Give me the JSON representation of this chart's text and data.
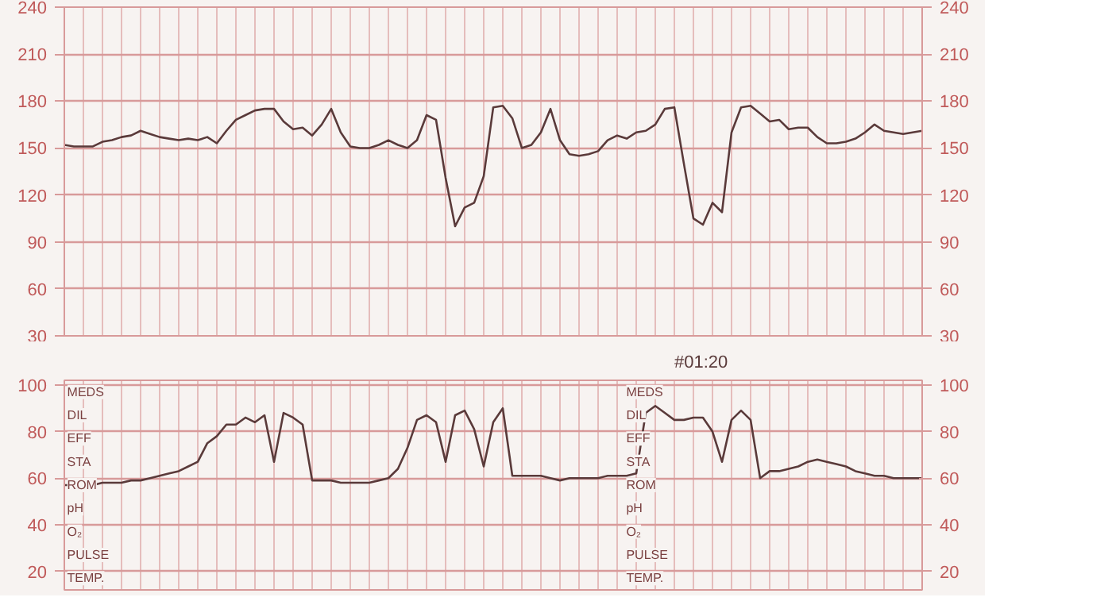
{
  "chart_data": [
    {
      "type": "line",
      "categories": [
        null,
        null,
        null,
        null,
        null,
        null,
        null,
        null,
        null,
        null,
        null,
        null,
        null,
        null,
        null,
        null,
        null,
        null,
        null,
        null,
        null,
        null,
        null,
        null,
        null,
        null,
        null,
        null,
        null,
        null,
        null,
        null,
        null,
        null,
        null,
        null,
        null,
        null,
        null,
        null,
        null,
        null,
        null,
        null,
        null,
        null,
        null,
        null,
        null,
        null,
        null,
        null,
        null,
        null,
        null,
        null,
        null,
        null,
        null,
        null,
        null,
        null,
        null,
        null,
        null,
        null,
        null,
        null,
        null,
        null,
        null,
        null,
        null,
        null,
        null,
        null,
        null,
        null,
        null,
        null,
        null,
        null,
        null,
        null,
        null,
        null,
        null,
        null,
        null,
        null,
        null
      ],
      "series": [
        {
          "color": "#5a3a3a",
          "values": [
            152,
            151,
            151,
            151,
            154,
            155,
            157,
            158,
            161,
            159,
            157,
            156,
            155,
            156,
            155,
            157,
            153,
            161,
            168,
            171,
            174,
            175,
            175,
            167,
            162,
            163,
            158,
            165,
            175,
            160,
            151,
            150,
            150,
            152,
            155,
            152,
            150,
            155,
            171,
            168,
            131,
            100,
            112,
            115,
            132,
            176,
            177,
            169,
            150,
            152,
            160,
            175,
            155,
            146,
            145,
            146,
            148,
            155,
            158,
            156,
            160,
            161,
            165,
            175,
            176,
            140,
            105,
            101,
            115,
            109,
            160,
            176,
            177,
            172,
            167,
            168,
            162,
            163,
            163,
            157,
            153,
            153,
            154,
            156,
            160,
            165,
            161,
            160,
            159,
            160,
            161
          ]
        }
      ],
      "ylim": [
        30,
        240
      ],
      "yticks": [
        30,
        60,
        90,
        120,
        150,
        180,
        210,
        240
      ],
      "y2lim": [
        30,
        240
      ],
      "y2ticks": [
        30,
        60,
        90,
        120,
        150,
        180,
        210,
        240
      ],
      "grid": true,
      "tick_labels": "y",
      "line_style": "solid"
    },
    {
      "type": "line",
      "categories": [
        null,
        null,
        null,
        null,
        null,
        null,
        null,
        null,
        null,
        null,
        null,
        null,
        null,
        null,
        null,
        null,
        null,
        null,
        null,
        null,
        null,
        null,
        null,
        null,
        null,
        null,
        null,
        null,
        null,
        null,
        null,
        null,
        null,
        null,
        null,
        null,
        null,
        null,
        null,
        null,
        null,
        null,
        null,
        null,
        null,
        null,
        null,
        null,
        null,
        null,
        null,
        null,
        null,
        null,
        null,
        null,
        null,
        null,
        null,
        null,
        null,
        null,
        null,
        null,
        null,
        null,
        null,
        null,
        null,
        null,
        null,
        null,
        null,
        null,
        null,
        null,
        null,
        null,
        null,
        null,
        null,
        null,
        null,
        null,
        null,
        null,
        null,
        null,
        null,
        null,
        null
      ],
      "series": [
        {
          "color": "#5a3a3a",
          "values": [
            57,
            57,
            57,
            57,
            58,
            58,
            58,
            59,
            59,
            60,
            61,
            62,
            63,
            65,
            67,
            75,
            78,
            83,
            83,
            86,
            84,
            87,
            67,
            88,
            86,
            83,
            59,
            59,
            59,
            58,
            58,
            58,
            58,
            59,
            60,
            64,
            73,
            85,
            87,
            84,
            67,
            87,
            89,
            81,
            65,
            84,
            90,
            61,
            61,
            61,
            61,
            60,
            59,
            60,
            60,
            60,
            60,
            61,
            61,
            61,
            62,
            88,
            91,
            88,
            85,
            85,
            86,
            86,
            80,
            67,
            85,
            89,
            85,
            60,
            63,
            63,
            64,
            65,
            67,
            68,
            67,
            66,
            65,
            63,
            62,
            61,
            61,
            60,
            60,
            60,
            60
          ]
        }
      ],
      "ylim": [
        12,
        102
      ],
      "yticks": [
        20,
        40,
        60,
        80,
        100
      ],
      "y2lim": [
        12,
        102
      ],
      "y2ticks": [
        20,
        40,
        60,
        80,
        100
      ],
      "grid": true,
      "tick_labels": "y",
      "line_style": "solid",
      "annotations": [
        "#01:20",
        "MEDS",
        "DIL",
        "EFF",
        "STA",
        "ROM",
        "pH",
        "O₂",
        "PULSE",
        "TEMP.",
        "MEDS",
        "DIL",
        "EFF",
        "STA",
        "ROM",
        "pH",
        "O₂",
        "PULSE",
        "TEMP."
      ]
    }
  ]
}
